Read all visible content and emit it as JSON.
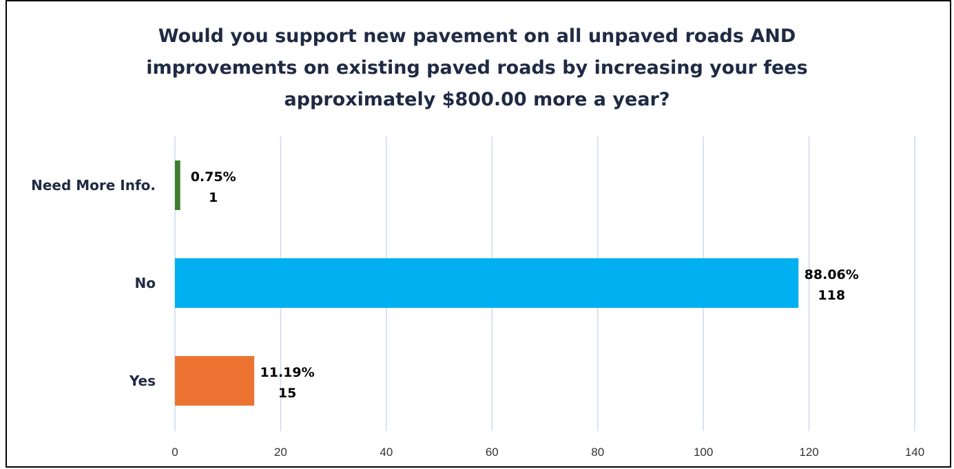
{
  "chart_data": {
    "type": "bar",
    "orientation": "horizontal",
    "title_lines": [
      "Would you support new pavement on all unpaved roads AND",
      "improvements on existing paved roads by increasing your fees",
      "approximately $800.00 more a year?"
    ],
    "categories": [
      "Need More Info.",
      "No",
      "Yes"
    ],
    "values": [
      1,
      118,
      15
    ],
    "percent_labels": [
      "0.75%",
      "88.06%",
      "11.19%"
    ],
    "count_labels": [
      "1",
      "118",
      "15"
    ],
    "colors": [
      "#3e7d2c",
      "#00b0f0",
      "#ed7332"
    ],
    "xlim": [
      0,
      140
    ],
    "x_ticks": [
      0,
      20,
      40,
      60,
      80,
      100,
      120,
      140
    ],
    "grid": true,
    "grid_color": "#c9daf0",
    "legend": "none"
  }
}
